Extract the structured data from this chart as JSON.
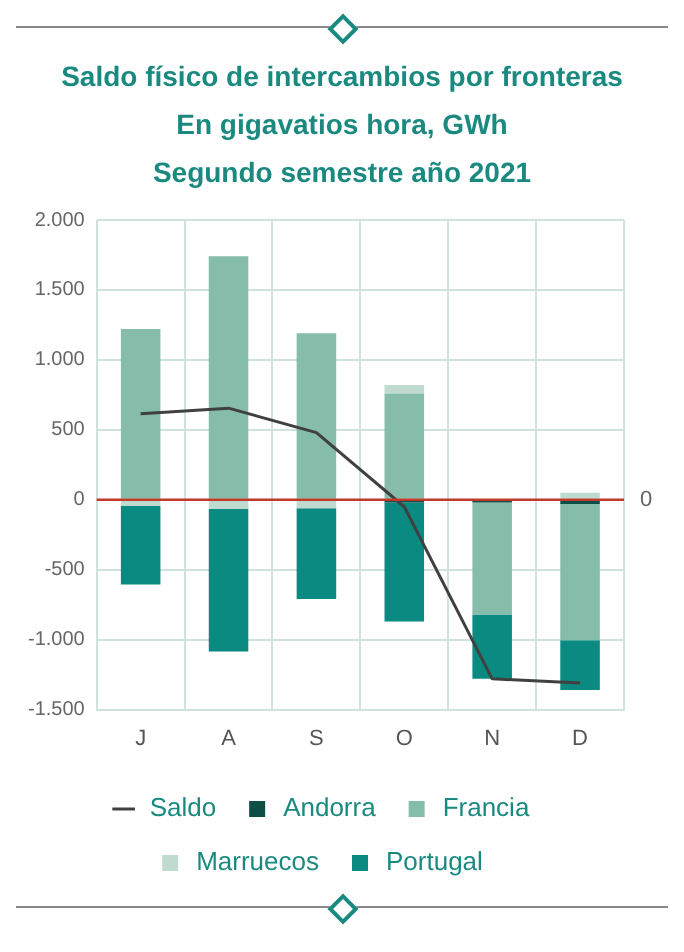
{
  "chart_data": {
    "type": "bar",
    "title": "Saldo físico de intercambios por fronteras",
    "subtitle": "En gigavatios hora, GWh\nSegundo semestre año 2021",
    "categories": [
      "J",
      "A",
      "S",
      "O",
      "N",
      "D"
    ],
    "stacked": true,
    "series": [
      {
        "name": "Andorra",
        "color": "#0d4f47",
        "values": [
          null,
          null,
          null,
          -20,
          -20,
          -30
        ]
      },
      {
        "name": "Francia",
        "color": "#86bdaa",
        "values": [
          1220,
          1740,
          1190,
          760,
          -800,
          -975
        ]
      },
      {
        "name": "Marruecos",
        "color": "#bfdbd0",
        "values": [
          -45,
          -65,
          -60,
          60,
          null,
          50
        ]
      },
      {
        "name": "Portugal",
        "color": "#0a8a80",
        "values": [
          -560,
          -1020,
          -650,
          -850,
          -460,
          -355
        ]
      },
      {
        "name": "Saldo",
        "type": "line",
        "color": "#404040",
        "values": [
          615,
          655,
          480,
          -50,
          -1280,
          -1310
        ]
      }
    ],
    "ylim": [
      -1500,
      2000
    ],
    "yticks": [
      {
        "value": -1500,
        "label": "-1.500"
      },
      {
        "value": -1000,
        "label": "-1.000"
      },
      -500,
      0,
      500,
      {
        "value": 1000,
        "label": "1.000"
      },
      {
        "value": 1500,
        "label": "1.500"
      },
      {
        "value": 2000,
        "label": "2.000"
      }
    ],
    "ref_lines": [
      {
        "axis": "y",
        "value": 0,
        "label": "0",
        "color": "#c0392b"
      }
    ],
    "grid": true,
    "legend": "bottom",
    "marker": "none",
    "line_style": "solid"
  }
}
